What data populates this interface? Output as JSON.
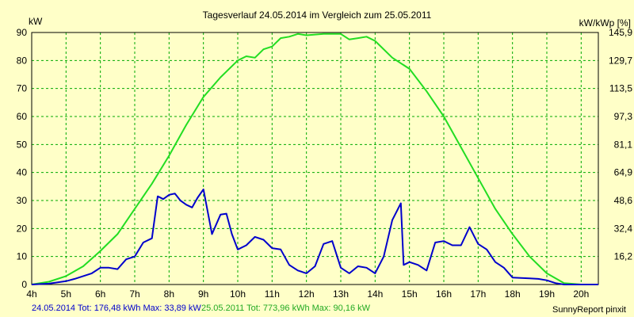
{
  "chart_data": {
    "type": "line",
    "title": "Tagesverlauf 24.05.2014 im Vergleich zum 25.05.2011",
    "ylabel_left": "kW",
    "ylabel_right": "kW/kWp [%]",
    "ylim": [
      0,
      90
    ],
    "xlim": [
      4,
      20.5
    ],
    "x_ticks": [
      "4h",
      "5h",
      "6h",
      "7h",
      "8h",
      "9h",
      "10h",
      "11h",
      "12h",
      "13h",
      "14h",
      "15h",
      "16h",
      "17h",
      "18h",
      "19h",
      "20h"
    ],
    "y_ticks_left": [
      "0",
      "10",
      "20",
      "30",
      "40",
      "50",
      "60",
      "70",
      "80",
      "90"
    ],
    "y_ticks_right": [
      "16,2",
      "32,4",
      "48,6",
      "64,9",
      "81,1",
      "97,3",
      "113,5",
      "129,7",
      "145,9"
    ],
    "grid": true,
    "series": [
      {
        "name": "24.05.2014",
        "color": "#0000cc",
        "points": [
          [
            4.0,
            0
          ],
          [
            4.5,
            0.3
          ],
          [
            5.0,
            1.2
          ],
          [
            5.25,
            2
          ],
          [
            5.5,
            3
          ],
          [
            5.75,
            4
          ],
          [
            6.0,
            6
          ],
          [
            6.25,
            6
          ],
          [
            6.5,
            5.5
          ],
          [
            6.75,
            9
          ],
          [
            7.0,
            10
          ],
          [
            7.25,
            15
          ],
          [
            7.5,
            16.5
          ],
          [
            7.67,
            31.5
          ],
          [
            7.83,
            30.5
          ],
          [
            8.0,
            32
          ],
          [
            8.17,
            32.5
          ],
          [
            8.33,
            30
          ],
          [
            8.5,
            28.5
          ],
          [
            8.67,
            27.5
          ],
          [
            8.83,
            31
          ],
          [
            9.0,
            34
          ],
          [
            9.25,
            18
          ],
          [
            9.5,
            25
          ],
          [
            9.67,
            25.3
          ],
          [
            9.83,
            18
          ],
          [
            10.0,
            12.5
          ],
          [
            10.25,
            14
          ],
          [
            10.5,
            17
          ],
          [
            10.75,
            16
          ],
          [
            11.0,
            13
          ],
          [
            11.25,
            12.5
          ],
          [
            11.5,
            7
          ],
          [
            11.75,
            5
          ],
          [
            12.0,
            4
          ],
          [
            12.25,
            6.5
          ],
          [
            12.5,
            14.5
          ],
          [
            12.75,
            15.5
          ],
          [
            13.0,
            6
          ],
          [
            13.25,
            4
          ],
          [
            13.5,
            6.5
          ],
          [
            13.75,
            6
          ],
          [
            14.0,
            4
          ],
          [
            14.25,
            10
          ],
          [
            14.5,
            23
          ],
          [
            14.75,
            29
          ],
          [
            14.83,
            7
          ],
          [
            15.0,
            8
          ],
          [
            15.25,
            7
          ],
          [
            15.5,
            5
          ],
          [
            15.75,
            15
          ],
          [
            16.0,
            15.5
          ],
          [
            16.25,
            14
          ],
          [
            16.5,
            14
          ],
          [
            16.75,
            20.5
          ],
          [
            17.0,
            14.5
          ],
          [
            17.25,
            12.5
          ],
          [
            17.5,
            8
          ],
          [
            17.75,
            6
          ],
          [
            18.0,
            2.5
          ],
          [
            18.5,
            2.2
          ],
          [
            18.75,
            2
          ],
          [
            19.0,
            1.5
          ],
          [
            19.25,
            0.5
          ],
          [
            19.5,
            0
          ],
          [
            20.0,
            0
          ],
          [
            20.5,
            0
          ]
        ]
      },
      {
        "name": "25.05.2011",
        "color": "#22dd22",
        "points": [
          [
            4.0,
            0
          ],
          [
            4.5,
            1
          ],
          [
            5.0,
            3
          ],
          [
            5.5,
            6.5
          ],
          [
            6.0,
            12
          ],
          [
            6.5,
            18
          ],
          [
            7.0,
            27
          ],
          [
            7.5,
            36
          ],
          [
            8.0,
            46
          ],
          [
            8.5,
            57
          ],
          [
            9.0,
            67
          ],
          [
            9.5,
            74
          ],
          [
            10.0,
            80
          ],
          [
            10.25,
            81.5
          ],
          [
            10.5,
            81
          ],
          [
            10.75,
            84
          ],
          [
            11.0,
            85
          ],
          [
            11.25,
            88
          ],
          [
            11.5,
            88.5
          ],
          [
            11.75,
            89.5
          ],
          [
            12.0,
            89
          ],
          [
            12.5,
            89.5
          ],
          [
            13.0,
            89.5
          ],
          [
            13.25,
            87.5
          ],
          [
            13.5,
            88
          ],
          [
            13.75,
            88.5
          ],
          [
            14.0,
            87
          ],
          [
            14.5,
            81
          ],
          [
            15.0,
            77
          ],
          [
            15.5,
            69
          ],
          [
            16.0,
            60
          ],
          [
            16.5,
            49
          ],
          [
            17.0,
            38
          ],
          [
            17.5,
            27
          ],
          [
            18.0,
            18
          ],
          [
            18.5,
            10
          ],
          [
            19.0,
            4
          ],
          [
            19.5,
            0.5
          ],
          [
            20.0,
            0
          ],
          [
            20.5,
            0
          ]
        ]
      }
    ]
  },
  "footer": {
    "series_a_summary": "24.05.2014 Tot: 176,48 kWh Max: 33,89 kW",
    "series_b_summary": "25.05.2011 Tot: 773,96 kWh Max: 90,16 kW",
    "brand": "SunnyReport pinxit"
  }
}
